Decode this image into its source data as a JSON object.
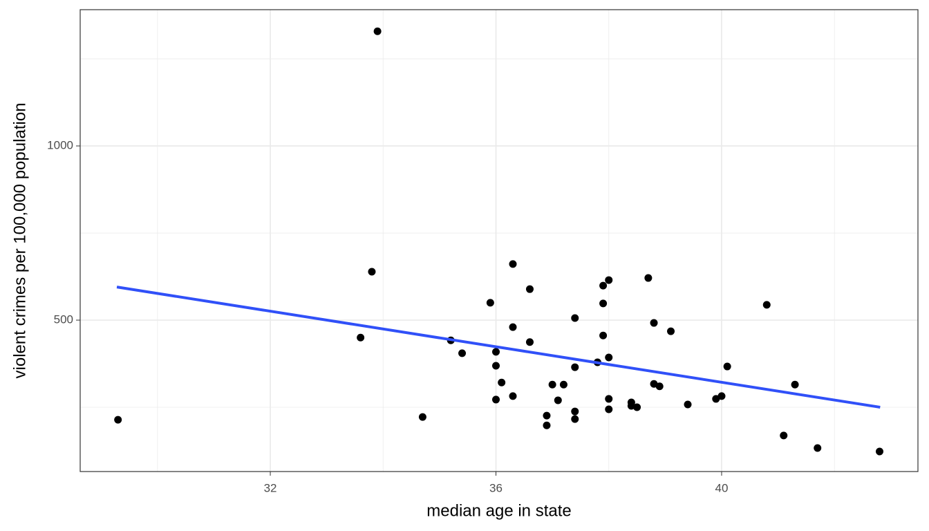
{
  "chart_data": {
    "type": "scatter",
    "x_label": "median age in state",
    "y_label": "violent crimes per 100,000 population",
    "xlim": [
      28.63,
      43.48
    ],
    "ylim": [
      65.5,
      1391
    ],
    "xticks": [
      32,
      36,
      40
    ],
    "yticks": [
      500,
      1000
    ],
    "xminorticks": [
      30,
      34,
      38,
      42
    ],
    "yminorticks": [
      250,
      750,
      1250
    ],
    "grid": true,
    "color": "#000000",
    "x": [
      29.3,
      33.9,
      33.8,
      33.6,
      34.7,
      35.2,
      35.4,
      35.9,
      36.0,
      36.0,
      36.0,
      36.1,
      36.3,
      36.3,
      36.3,
      36.6,
      36.6,
      36.9,
      36.9,
      37.0,
      37.1,
      37.2,
      37.4,
      37.4,
      37.4,
      37.4,
      37.8,
      37.9,
      37.9,
      37.9,
      38.0,
      38.0,
      38.0,
      38.0,
      38.4,
      38.4,
      38.5,
      38.7,
      38.8,
      38.8,
      38.9,
      39.1,
      39.4,
      39.9,
      40.0,
      40.1,
      40.8,
      41.1,
      41.3,
      41.7,
      42.8
    ],
    "values": [
      214,
      1329,
      639,
      450,
      222,
      442,
      405,
      550,
      409,
      369,
      272,
      321,
      661,
      480,
      282,
      589,
      437,
      226,
      198,
      315,
      270,
      315,
      506,
      365,
      238,
      216,
      379,
      599,
      548,
      456,
      615,
      393,
      274,
      244,
      264,
      254,
      250,
      621,
      492,
      317,
      310,
      468,
      258,
      274,
      282,
      367,
      544,
      169,
      315,
      133,
      123
    ],
    "trend_line": {
      "color": "#3050f8",
      "x": [
        29.28,
        42.81
      ],
      "values": [
        595,
        250
      ]
    }
  }
}
